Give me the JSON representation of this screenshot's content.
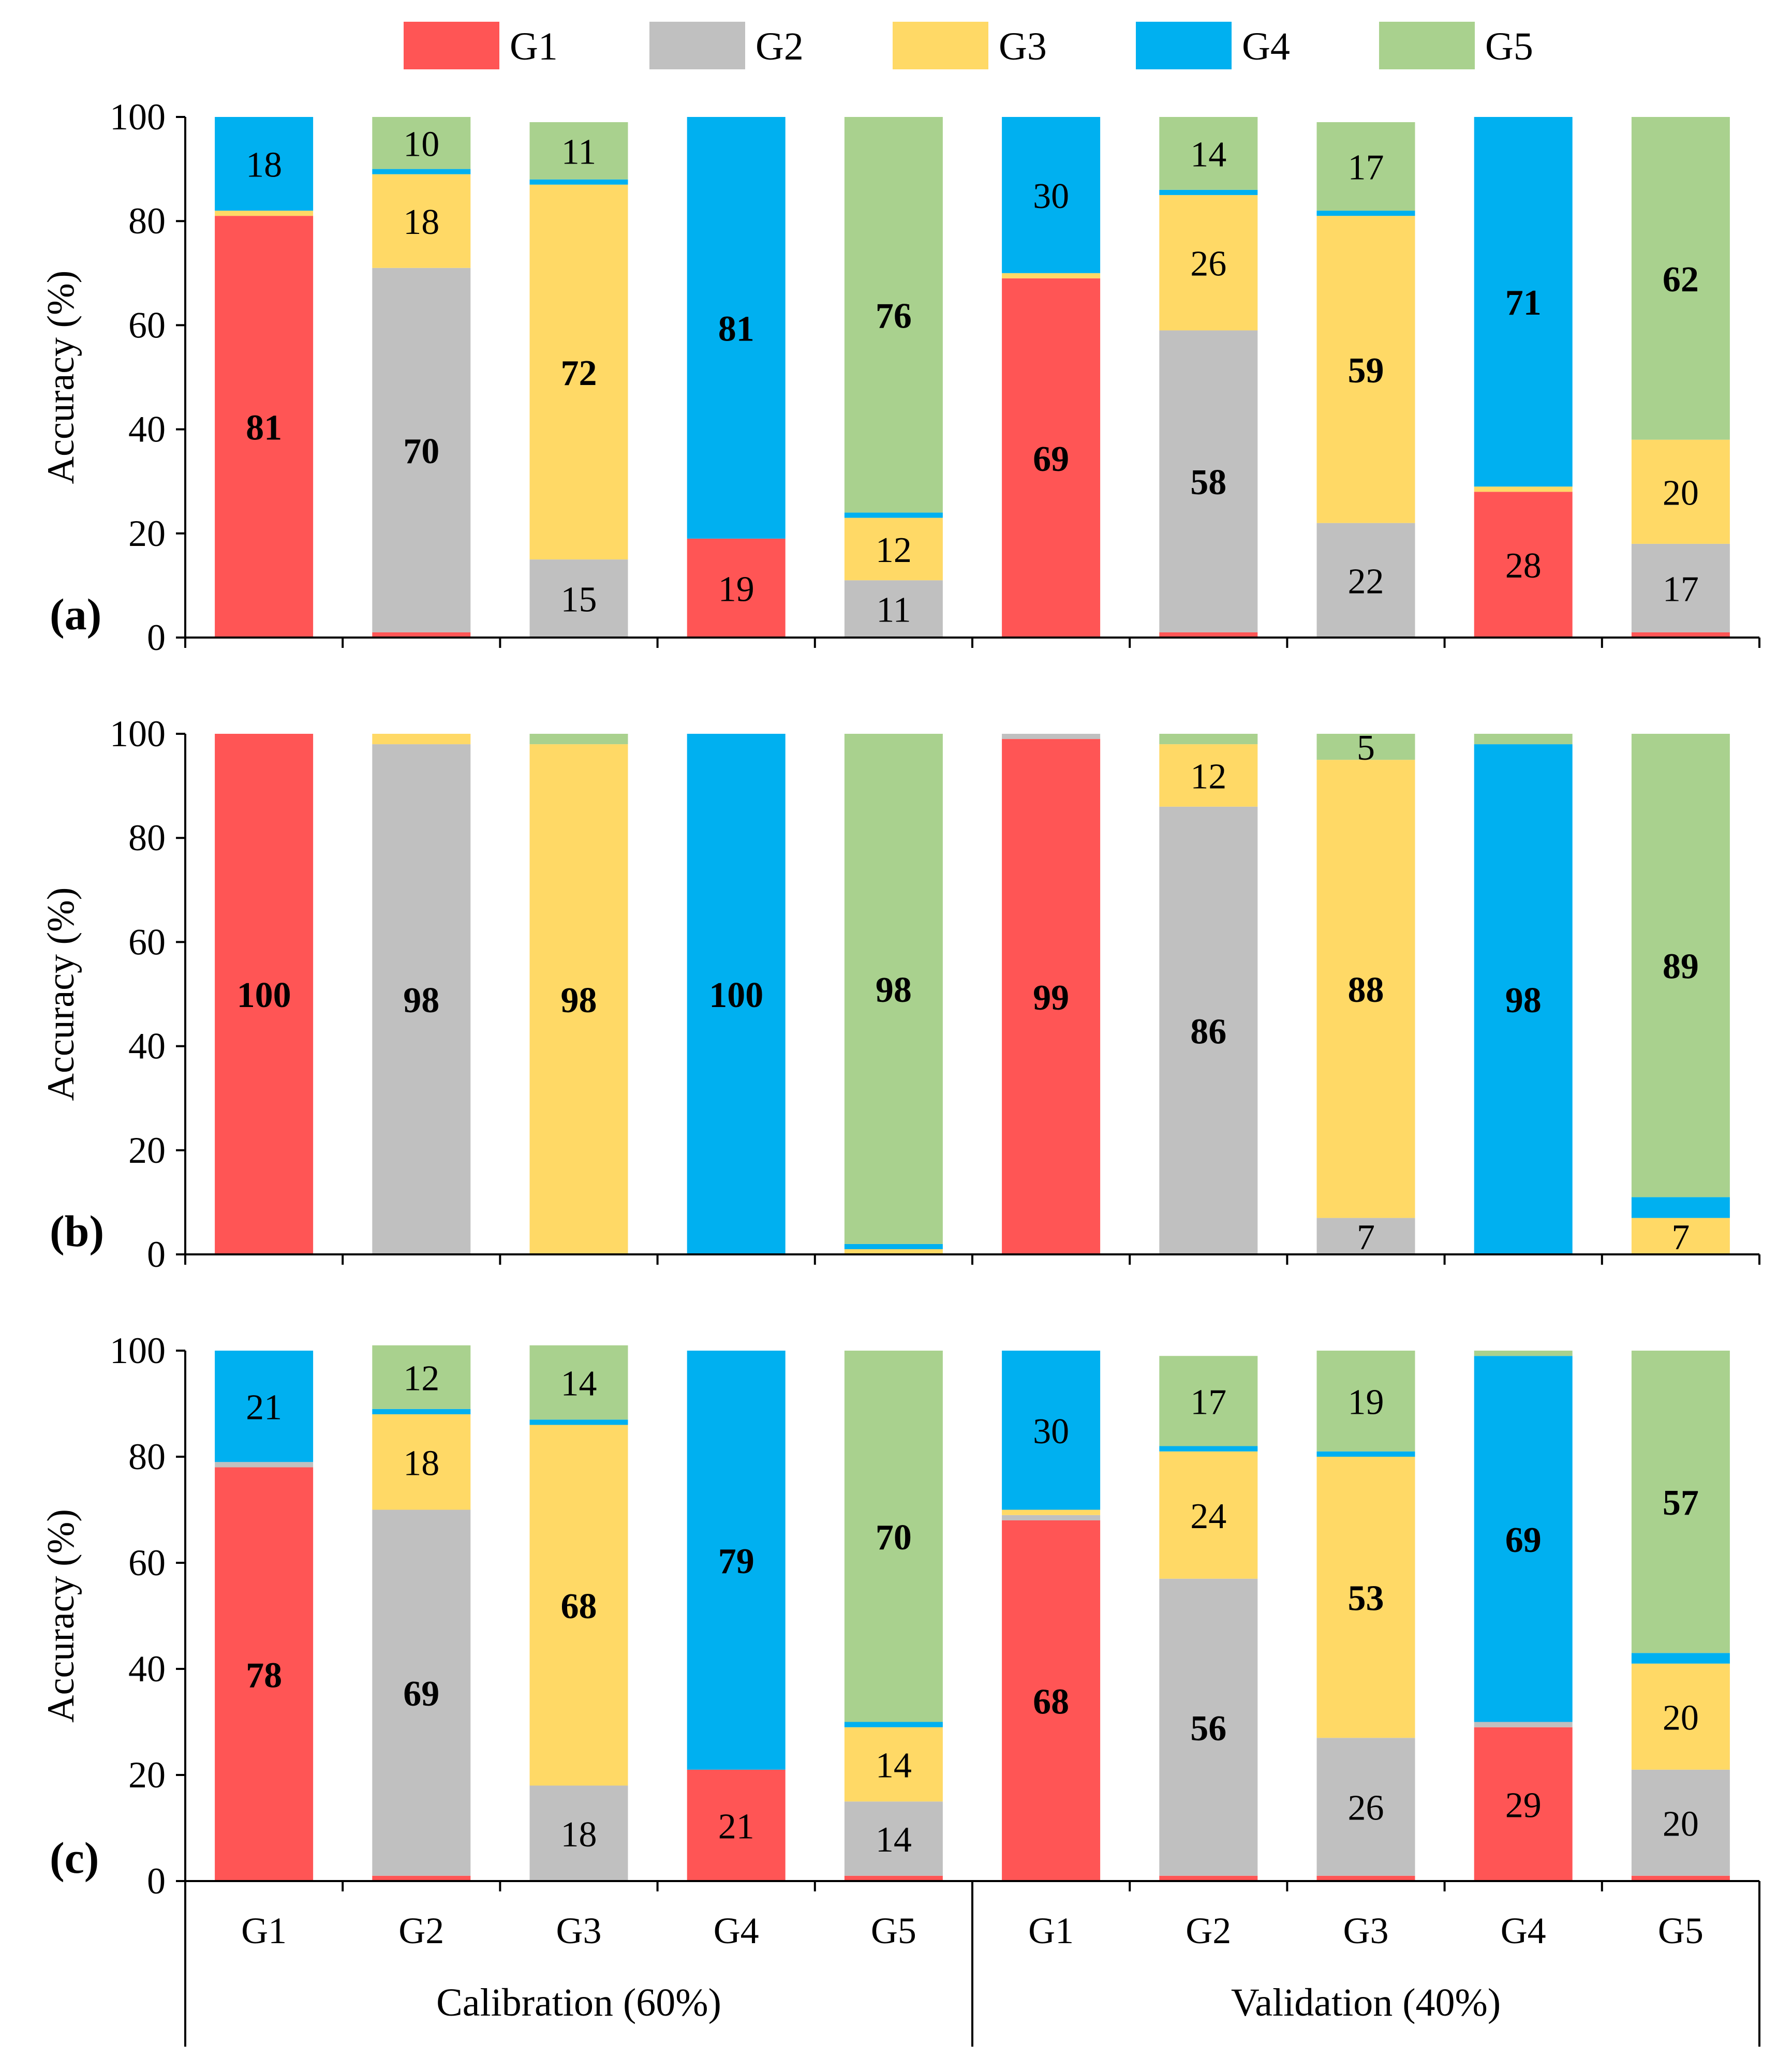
{
  "legend": {
    "items": [
      {
        "label": "G1",
        "color": "#ff5555"
      },
      {
        "label": "G2",
        "color": "#c0c0c0"
      },
      {
        "label": "G3",
        "color": "#ffd966"
      },
      {
        "label": "G4",
        "color": "#00b0f0"
      },
      {
        "label": "G5",
        "color": "#a9d18e"
      }
    ]
  },
  "x_axis": {
    "categories": [
      "G1",
      "G2",
      "G3",
      "G4",
      "G5",
      "G1",
      "G2",
      "G3",
      "G4",
      "G5"
    ],
    "groups": [
      "Calibration (60%)",
      "Validation (40%)"
    ]
  },
  "chart_data": [
    {
      "type": "bar",
      "stacked": true,
      "panel": "(a)",
      "ylabel": "Accuracy (%)",
      "ylim": [
        0,
        100
      ],
      "yticks": [
        0,
        20,
        40,
        60,
        80,
        100
      ],
      "categories": [
        "G1",
        "G2",
        "G3",
        "G4",
        "G5",
        "G1",
        "G2",
        "G3",
        "G4",
        "G5"
      ],
      "series": [
        {
          "name": "G1",
          "values": [
            81,
            1,
            0,
            19,
            0,
            69,
            1,
            0,
            28,
            1
          ]
        },
        {
          "name": "G2",
          "values": [
            0,
            70,
            15,
            0,
            11,
            0,
            58,
            22,
            0,
            17
          ]
        },
        {
          "name": "G3",
          "values": [
            1,
            18,
            72,
            0,
            12,
            1,
            26,
            59,
            1,
            20
          ]
        },
        {
          "name": "G4",
          "values": [
            18,
            1,
            1,
            81,
            1,
            30,
            1,
            1,
            71,
            0
          ]
        },
        {
          "name": "G5",
          "values": [
            0,
            10,
            11,
            0,
            76,
            0,
            14,
            17,
            0,
            62
          ]
        }
      ],
      "labels": [
        [
          {
            "series": 0,
            "text": "81",
            "bold": true
          },
          {
            "series": 3,
            "text": "18",
            "bold": false
          }
        ],
        [
          {
            "series": 1,
            "text": "70",
            "bold": true
          },
          {
            "series": 2,
            "text": "18",
            "bold": false
          },
          {
            "series": 4,
            "text": "10",
            "bold": false
          }
        ],
        [
          {
            "series": 1,
            "text": "15",
            "bold": false
          },
          {
            "series": 2,
            "text": "72",
            "bold": true
          },
          {
            "series": 4,
            "text": "11",
            "bold": false
          }
        ],
        [
          {
            "series": 0,
            "text": "19",
            "bold": false
          },
          {
            "series": 3,
            "text": "81",
            "bold": true
          }
        ],
        [
          {
            "series": 1,
            "text": "11",
            "bold": false
          },
          {
            "series": 2,
            "text": "12",
            "bold": false
          },
          {
            "series": 4,
            "text": "76",
            "bold": true
          }
        ],
        [
          {
            "series": 0,
            "text": "69",
            "bold": true
          },
          {
            "series": 3,
            "text": "30",
            "bold": false
          }
        ],
        [
          {
            "series": 1,
            "text": "58",
            "bold": true
          },
          {
            "series": 2,
            "text": "26",
            "bold": false
          },
          {
            "series": 4,
            "text": "14",
            "bold": false
          }
        ],
        [
          {
            "series": 1,
            "text": "22",
            "bold": false
          },
          {
            "series": 2,
            "text": "59",
            "bold": true
          },
          {
            "series": 4,
            "text": "17",
            "bold": false
          }
        ],
        [
          {
            "series": 0,
            "text": "28",
            "bold": false
          },
          {
            "series": 3,
            "text": "71",
            "bold": true
          }
        ],
        [
          {
            "series": 1,
            "text": "17",
            "bold": false
          },
          {
            "series": 2,
            "text": "20",
            "bold": false
          },
          {
            "series": 4,
            "text": "62",
            "bold": true
          }
        ]
      ]
    },
    {
      "type": "bar",
      "stacked": true,
      "panel": "(b)",
      "ylabel": "Accuracy (%)",
      "ylim": [
        0,
        100
      ],
      "yticks": [
        0,
        20,
        40,
        60,
        80,
        100
      ],
      "categories": [
        "G1",
        "G2",
        "G3",
        "G4",
        "G5",
        "G1",
        "G2",
        "G3",
        "G4",
        "G5"
      ],
      "series": [
        {
          "name": "G1",
          "values": [
            100,
            0,
            0,
            0,
            0,
            99,
            0,
            0,
            0,
            0
          ]
        },
        {
          "name": "G2",
          "values": [
            0,
            98,
            0,
            0,
            0,
            1,
            86,
            7,
            0,
            0
          ]
        },
        {
          "name": "G3",
          "values": [
            0,
            2,
            98,
            0,
            1,
            0,
            12,
            88,
            0,
            7
          ]
        },
        {
          "name": "G4",
          "values": [
            0,
            0,
            0,
            100,
            1,
            0,
            0,
            0,
            98,
            4
          ]
        },
        {
          "name": "G5",
          "values": [
            0,
            0,
            2,
            0,
            98,
            0,
            2,
            5,
            2,
            89
          ]
        }
      ],
      "labels": [
        [
          {
            "series": 0,
            "text": "100",
            "bold": true
          }
        ],
        [
          {
            "series": 1,
            "text": "98",
            "bold": true
          }
        ],
        [
          {
            "series": 2,
            "text": "98",
            "bold": true
          }
        ],
        [
          {
            "series": 3,
            "text": "100",
            "bold": true
          }
        ],
        [
          {
            "series": 4,
            "text": "98",
            "bold": true
          }
        ],
        [
          {
            "series": 0,
            "text": "99",
            "bold": true
          }
        ],
        [
          {
            "series": 1,
            "text": "86",
            "bold": true
          },
          {
            "series": 2,
            "text": "12",
            "bold": false
          }
        ],
        [
          {
            "series": 1,
            "text": "7",
            "bold": false
          },
          {
            "series": 2,
            "text": "88",
            "bold": true
          },
          {
            "series": 4,
            "text": "5",
            "bold": false
          }
        ],
        [
          {
            "series": 3,
            "text": "98",
            "bold": true
          }
        ],
        [
          {
            "series": 2,
            "text": "7",
            "bold": false
          },
          {
            "series": 4,
            "text": "89",
            "bold": true
          }
        ]
      ]
    },
    {
      "type": "bar",
      "stacked": true,
      "panel": "(c)",
      "ylabel": "Accuracy (%)",
      "ylim": [
        0,
        100
      ],
      "yticks": [
        0,
        20,
        40,
        60,
        80,
        100
      ],
      "categories": [
        "G1",
        "G2",
        "G3",
        "G4",
        "G5",
        "G1",
        "G2",
        "G3",
        "G4",
        "G5"
      ],
      "series": [
        {
          "name": "G1",
          "values": [
            78,
            1,
            0,
            21,
            1,
            68,
            1,
            1,
            29,
            1
          ]
        },
        {
          "name": "G2",
          "values": [
            1,
            69,
            18,
            0,
            14,
            1,
            56,
            26,
            1,
            20
          ]
        },
        {
          "name": "G3",
          "values": [
            0,
            18,
            68,
            0,
            14,
            1,
            24,
            53,
            0,
            20
          ]
        },
        {
          "name": "G4",
          "values": [
            21,
            1,
            1,
            79,
            1,
            30,
            1,
            1,
            69,
            2
          ]
        },
        {
          "name": "G5",
          "values": [
            0,
            12,
            14,
            0,
            70,
            0,
            17,
            19,
            1,
            57
          ]
        }
      ],
      "labels": [
        [
          {
            "series": 0,
            "text": "78",
            "bold": true
          },
          {
            "series": 3,
            "text": "21",
            "bold": false
          }
        ],
        [
          {
            "series": 1,
            "text": "69",
            "bold": true
          },
          {
            "series": 2,
            "text": "18",
            "bold": false
          },
          {
            "series": 4,
            "text": "12",
            "bold": false
          }
        ],
        [
          {
            "series": 1,
            "text": "18",
            "bold": false
          },
          {
            "series": 2,
            "text": "68",
            "bold": true
          },
          {
            "series": 4,
            "text": "14",
            "bold": false
          }
        ],
        [
          {
            "series": 0,
            "text": "21",
            "bold": false
          },
          {
            "series": 3,
            "text": "79",
            "bold": true
          }
        ],
        [
          {
            "series": 1,
            "text": "14",
            "bold": false
          },
          {
            "series": 2,
            "text": "14",
            "bold": false
          },
          {
            "series": 4,
            "text": "70",
            "bold": true
          }
        ],
        [
          {
            "series": 0,
            "text": "68",
            "bold": true
          },
          {
            "series": 3,
            "text": "30",
            "bold": false
          }
        ],
        [
          {
            "series": 1,
            "text": "56",
            "bold": true
          },
          {
            "series": 2,
            "text": "24",
            "bold": false
          },
          {
            "series": 4,
            "text": "17",
            "bold": false
          }
        ],
        [
          {
            "series": 1,
            "text": "26",
            "bold": false
          },
          {
            "series": 2,
            "text": "53",
            "bold": true
          },
          {
            "series": 4,
            "text": "19",
            "bold": false
          }
        ],
        [
          {
            "series": 0,
            "text": "29",
            "bold": false
          },
          {
            "series": 3,
            "text": "69",
            "bold": true
          }
        ],
        [
          {
            "series": 1,
            "text": "20",
            "bold": false
          },
          {
            "series": 2,
            "text": "20",
            "bold": false
          },
          {
            "series": 4,
            "text": "57",
            "bold": true
          }
        ]
      ]
    }
  ]
}
